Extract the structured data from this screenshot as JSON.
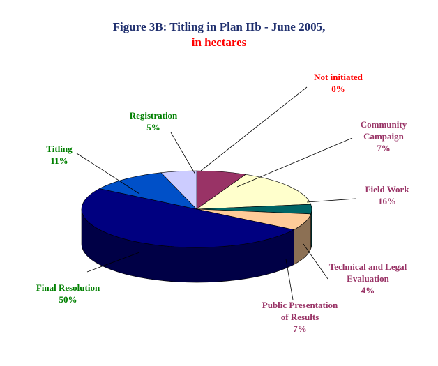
{
  "chart_data": {
    "type": "pie3d",
    "title": "Figure 3B: Titling in Plan IIb - June 2005,",
    "subtitle": "in hectares",
    "categories": [
      "Not initiated",
      "Community Campaign",
      "Field Work",
      "Technical and Legal Evaluation",
      "Public Presentation of Results",
      "Final Resolution",
      "Titling",
      "Registration"
    ],
    "values": [
      0,
      7,
      16,
      4,
      7,
      50,
      11,
      5
    ],
    "value_labels": [
      "0%",
      "7%",
      "16%",
      "4%",
      "7%",
      "50%",
      "11%",
      "5%"
    ],
    "colors": [
      "#ff0000",
      "#993366",
      "#ffffcc",
      "#006666",
      "#ffcc99",
      "#000080",
      "#0050c8",
      "#ccccff"
    ]
  }
}
